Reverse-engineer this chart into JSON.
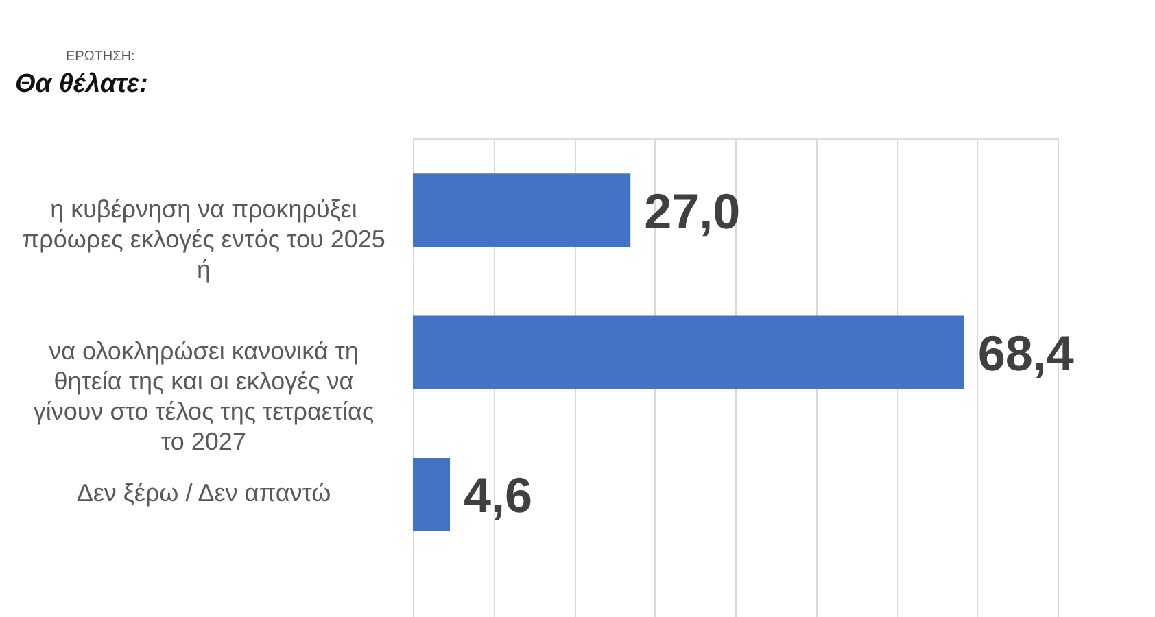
{
  "chart_data": {
    "type": "bar",
    "orientation": "horizontal",
    "subtitle": "ΕΡΩΤΗΣΗ:",
    "title": "Θα θέλατε:",
    "categories": [
      "η κυβέρνηση να προκηρύξει πρόωρες εκλογές εντός του 2025 ή",
      "να ολοκληρώσει κανονικά τη θητεία της και οι εκλογές να γίνουν στο τέλος της τετραετίας το 2027",
      "Δεν ξέρω / Δεν απαντώ"
    ],
    "values": [
      27.0,
      68.4,
      4.6
    ],
    "value_labels": [
      "27,0",
      "68,4",
      "4,6"
    ],
    "color": "#4472c4",
    "xlim": [
      0,
      80
    ],
    "xticks": [
      {
        "value": 0,
        "label": null
      },
      {
        "value": 10,
        "label": null
      },
      {
        "value": 20,
        "label": null
      },
      {
        "value": 30,
        "label": null
      },
      {
        "value": 40,
        "label": null
      },
      {
        "value": 50,
        "label": null
      },
      {
        "value": 60,
        "label": null
      },
      {
        "value": 70,
        "label": null
      },
      {
        "value": 80,
        "label": null
      }
    ],
    "grid": "x",
    "tick_labels": "y"
  }
}
